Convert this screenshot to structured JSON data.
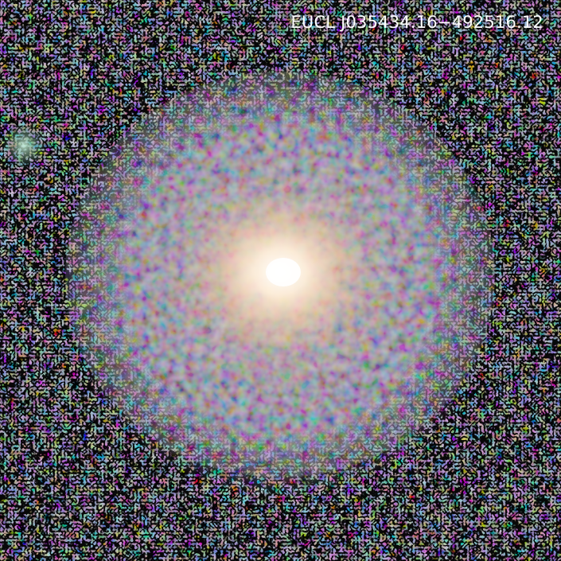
{
  "image": {
    "object_id": "EUCL J035434.16−492516.12"
  },
  "colors": {
    "core": "#fff2dc",
    "halo": "#e0b89a",
    "background": "#1a1a1a"
  }
}
